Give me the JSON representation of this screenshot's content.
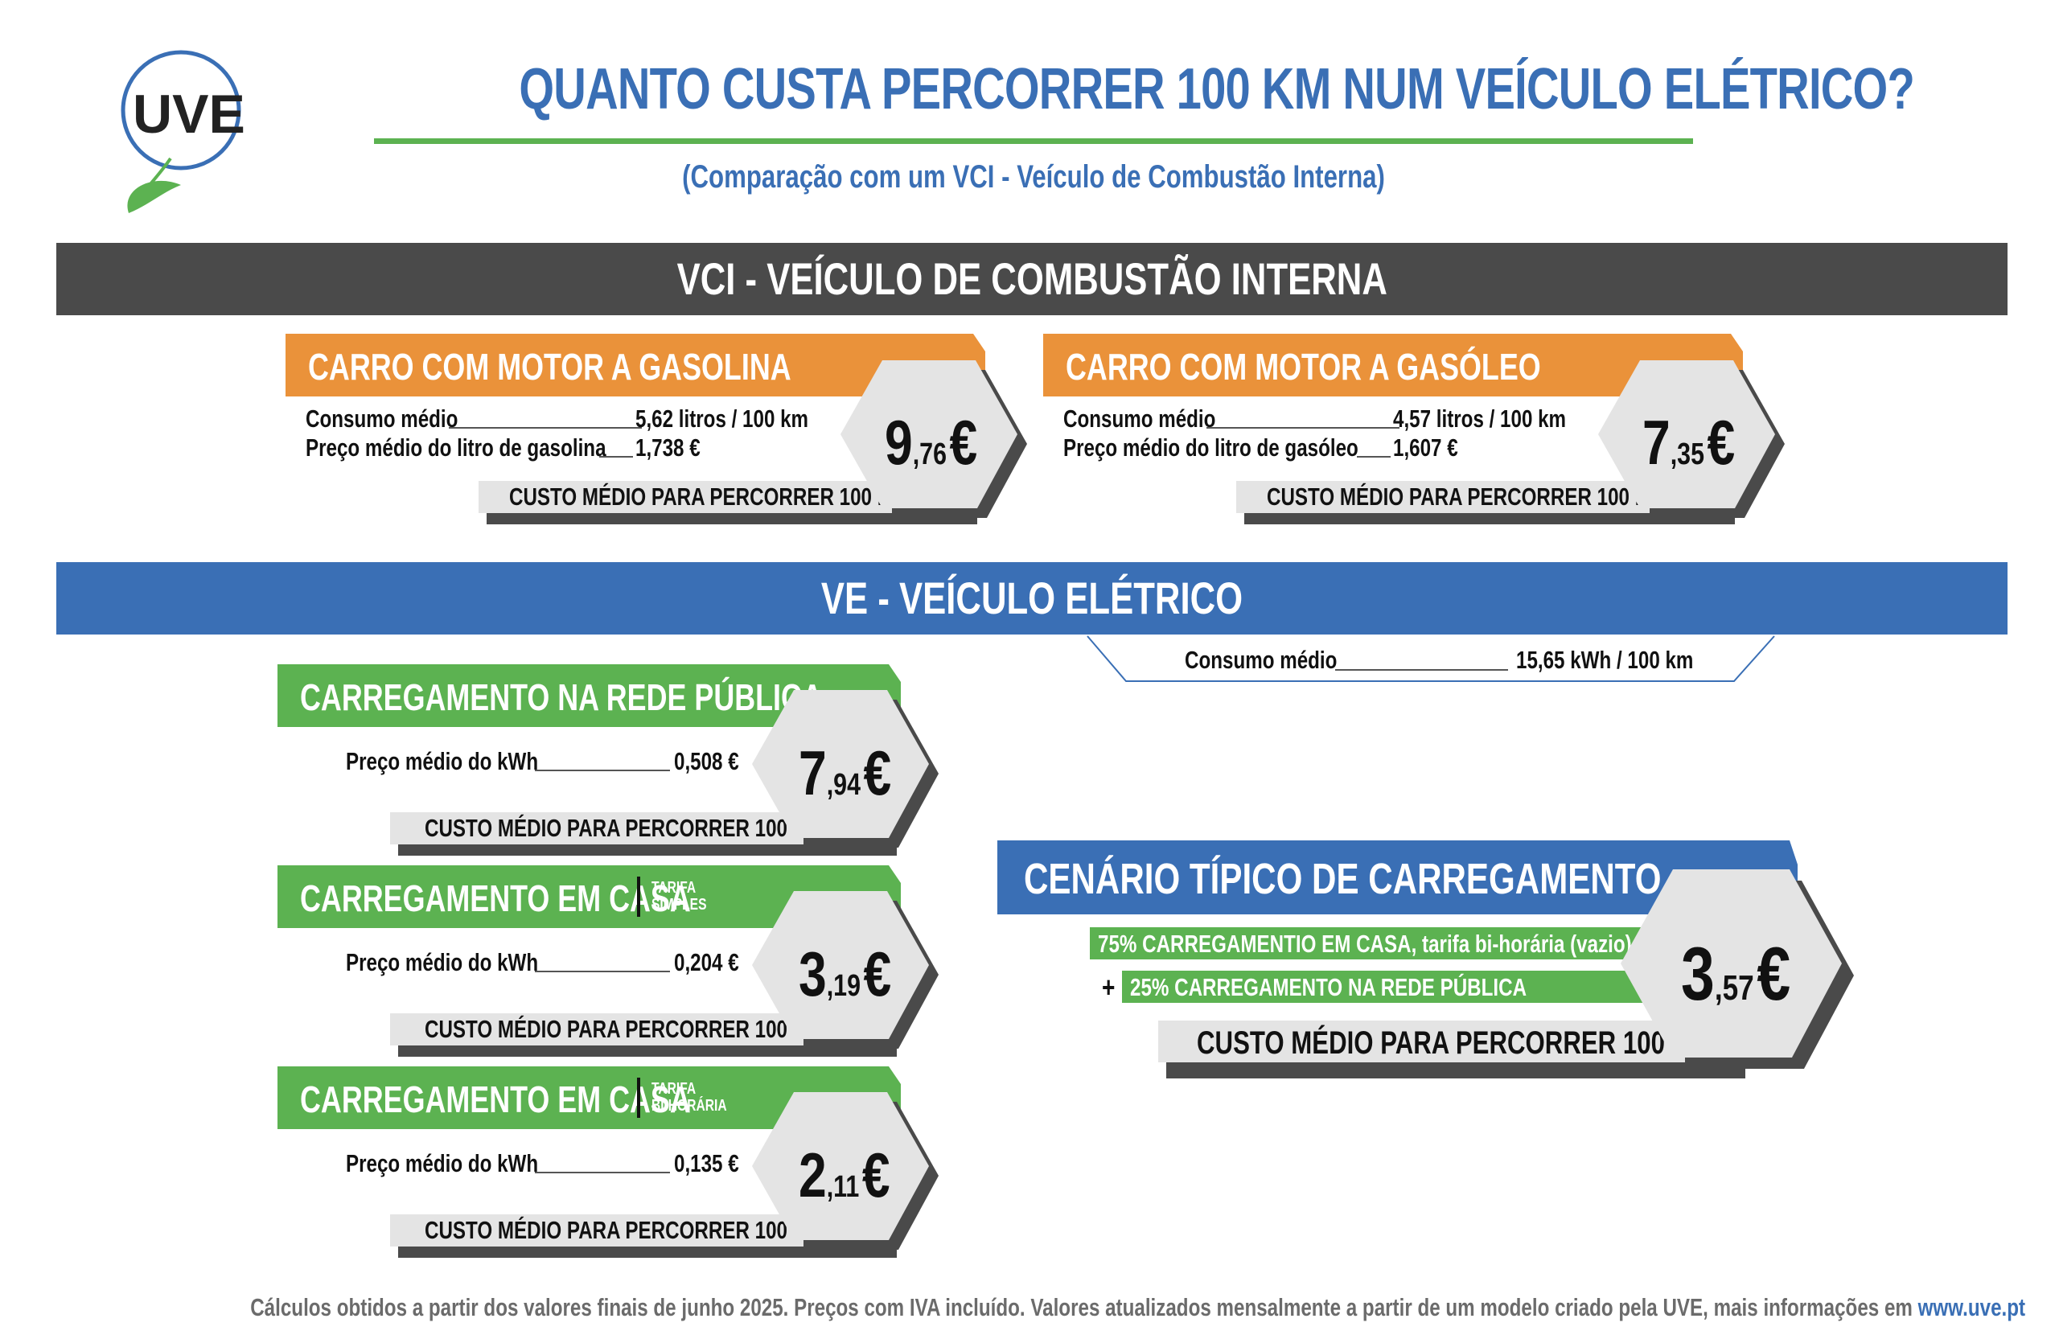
{
  "logo": {
    "text": "UVE"
  },
  "header": {
    "title": "QUANTO CUSTA PERCORRER 100 KM NUM VEÍCULO ELÉTRICO?",
    "subtitle": "(Comparação com um VCI - Veículo de Combustão Interna)"
  },
  "vci": {
    "band_title": "VCI - VEÍCULO DE COMBUSTÃO INTERNA",
    "gasolina": {
      "title": "CARRO COM MOTOR A GASOLINA",
      "rows": [
        {
          "label": "Consumo médio",
          "value": "5,62 litros / 100 km"
        },
        {
          "label": "Preço médio do litro de gasolina",
          "value": "1,738 €"
        }
      ],
      "cost_label": "CUSTO MÉDIO PARA PERCORRER 100 KM",
      "price_int": "9",
      "price_dec": ",76",
      "currency": "€"
    },
    "gasoleo": {
      "title": "CARRO COM MOTOR A GASÓLEO",
      "rows": [
        {
          "label": "Consumo médio",
          "value": "4,57 litros / 100 km"
        },
        {
          "label": "Preço médio do litro de gasóleo",
          "value": "1,607 €"
        }
      ],
      "cost_label": "CUSTO MÉDIO PARA PERCORRER 100 KM",
      "price_int": "7",
      "price_dec": ",35",
      "currency": "€"
    }
  },
  "ve": {
    "band_title": "VE - VEÍCULO ELÉTRICO",
    "consumo": {
      "label": "Consumo médio",
      "value": "15,65 kWh / 100 km"
    },
    "publica": {
      "title": "CARREGAMENTO NA REDE PÚBLICA",
      "row": {
        "label": "Preço médio do kWh",
        "value": "0,508 €"
      },
      "cost_label": "CUSTO MÉDIO PARA PERCORRER 100 KM",
      "price_int": "7",
      "price_dec": ",94",
      "currency": "€"
    },
    "casa_simples": {
      "title": "CARREGAMENTO EM CASA",
      "tarifa_line1": "TARIFA",
      "tarifa_line2": "SIMPLES",
      "row": {
        "label": "Preço médio do kWh",
        "value": "0,204 €"
      },
      "cost_label": "CUSTO MÉDIO PARA PERCORRER 100 KM",
      "price_int": "3",
      "price_dec": ",19",
      "currency": "€"
    },
    "casa_bihoraria": {
      "title": "CARREGAMENTO EM CASA",
      "tarifa_line1": "TARIFA",
      "tarifa_line2": "BI-HORÁRIA",
      "row": {
        "label": "Preço médio do kWh",
        "value": "0,135 €"
      },
      "cost_label": "CUSTO MÉDIO PARA PERCORRER 100 KM",
      "price_int": "2",
      "price_dec": ",11",
      "currency": "€"
    },
    "cenario": {
      "title": "CENÁRIO TÍPICO DE CARREGAMENTO",
      "line1": "75% CARREGAMENTIO EM CASA, tarifa bi-horária (vazio)",
      "plus": "+",
      "line2": "25% CARREGAMENTO NA REDE PÚBLICA",
      "cost_label": "CUSTO MÉDIO PARA PERCORRER 100 KM",
      "price_int": "3",
      "price_dec": ",57",
      "currency": "€"
    }
  },
  "footer": {
    "text": "Cálculos obtidos a partir dos valores finais de junho 2025. Preços com IVA incluído. Valores atualizados mensalmente a partir de um modelo criado pela UVE, mais informações em ",
    "link": "www.uve.pt"
  },
  "colors": {
    "blue": "#3a6fb5",
    "green": "#5cb251",
    "orange": "#ea923a",
    "dark": "#4a4a4a",
    "light_gray": "#e4e4e4"
  }
}
